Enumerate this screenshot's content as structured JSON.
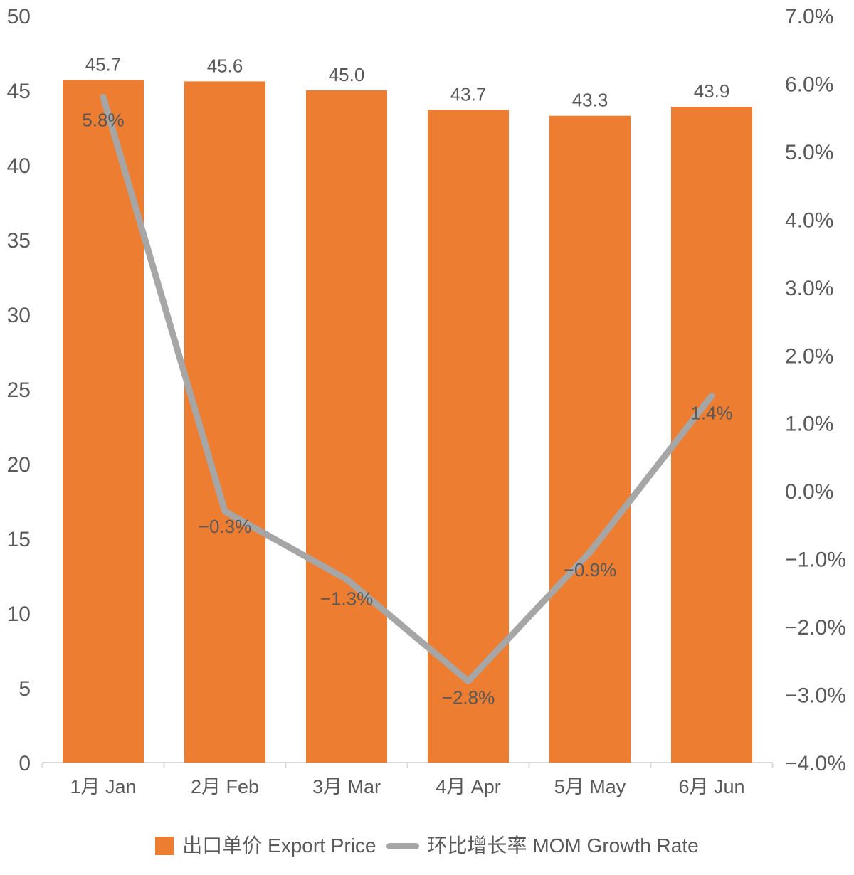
{
  "colors": {
    "bar": "#ED7D31",
    "line": "#A6A6A6",
    "text": "#595959",
    "axis_line": "#D9D9D9",
    "background": "#FFFFFF"
  },
  "chart_data": {
    "type": "bar+line combo",
    "categories": [
      "1月 Jan",
      "2月 Feb",
      "3月 Mar",
      "4月 Apr",
      "5月 May",
      "6月 Jun"
    ],
    "series": [
      {
        "name": "出口单价 Export Price",
        "type": "bar",
        "axis": "left",
        "color": "#ED7D31",
        "values": [
          45.7,
          45.6,
          45.0,
          43.7,
          43.3,
          43.9
        ],
        "labels": [
          "45.7",
          "45.6",
          "45.0",
          "43.7",
          "43.3",
          "43.9"
        ]
      },
      {
        "name": "环比增长率 MOM Growth Rate",
        "type": "line",
        "axis": "right",
        "color": "#A6A6A6",
        "values": [
          5.8,
          -0.3,
          -1.3,
          -2.8,
          -0.9,
          1.4
        ],
        "labels": [
          "5.8%",
          "−0.3%",
          "−1.3%",
          "−2.8%",
          "−0.9%",
          "1.4%"
        ]
      }
    ],
    "left_axis": {
      "min": 0,
      "max": 50,
      "step": 5,
      "tick_labels": [
        "0",
        "5",
        "10",
        "15",
        "20",
        "25",
        "30",
        "35",
        "40",
        "45",
        "50"
      ]
    },
    "right_axis": {
      "min": -4.0,
      "max": 7.0,
      "step": 1.0,
      "tick_labels": [
        "−4.0%",
        "−3.0%",
        "−2.0%",
        "−1.0%",
        "0.0%",
        "1.0%",
        "2.0%",
        "3.0%",
        "4.0%",
        "5.0%",
        "6.0%",
        "7.0%"
      ]
    },
    "grid": "off",
    "legend_position": "bottom-center"
  }
}
